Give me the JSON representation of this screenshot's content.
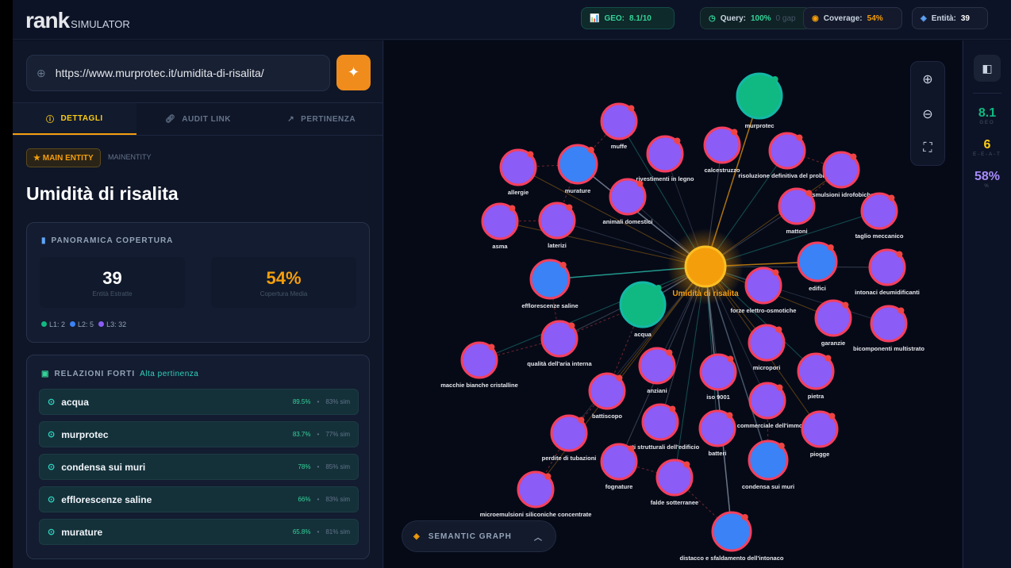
{
  "header": {
    "logo_main": "rank",
    "logo_sub": "SIMULATOR",
    "geo": {
      "label": "GEO:",
      "value": "8.1/10"
    },
    "query": {
      "label": "Query:",
      "value": "100%",
      "extra": "0 gap"
    },
    "coverage": {
      "label": "Coverage:",
      "value": "54%"
    },
    "entities": {
      "label": "Entità:",
      "value": "39"
    }
  },
  "url_input": {
    "value": "https://www.murprotec.it/umidita-di-risalita/"
  },
  "tabs": [
    {
      "label": "DETTAGLI",
      "icon": "info-icon",
      "active": true
    },
    {
      "label": "AUDIT LINK",
      "icon": "link-icon"
    },
    {
      "label": "PERTINENZA",
      "icon": "trending-up-icon"
    }
  ],
  "entity": {
    "badge": "★ MAIN ENTITY",
    "type": "MAINENTITY",
    "title": "Umidità di risalita"
  },
  "coverage_panel": {
    "title": "PANORAMICA COPERTURA",
    "entities_value": "39",
    "entities_label": "Entità Estratte",
    "coverage_value": "54%",
    "coverage_label": "Copertura Media",
    "levels": [
      {
        "label": "L1: 2",
        "color": "#10b981"
      },
      {
        "label": "L2: 5",
        "color": "#3b82f6"
      },
      {
        "label": "L3: 32",
        "color": "#8b5cf6"
      }
    ]
  },
  "relations": {
    "title": "RELAZIONI FORTI",
    "subtitle": "Alta pertinenza",
    "items": [
      {
        "name": "acqua",
        "score": "89.5%",
        "sim": "83% sim"
      },
      {
        "name": "murprotec",
        "score": "83.7%",
        "sim": "77% sim"
      },
      {
        "name": "condensa sui muri",
        "score": "78%",
        "sim": "85% sim"
      },
      {
        "name": "efflorescenze saline",
        "score": "66%",
        "sim": "83% sim"
      },
      {
        "name": "murature",
        "score": "65.8%",
        "sim": "81% sim"
      }
    ]
  },
  "graph": {
    "bottom_label": "SEMANTIC GRAPH",
    "colors": {
      "main": "#f59e0b",
      "L1": "#10b981",
      "L2": "#3b82f6",
      "L3": "#8b5cf6"
    },
    "nodes": [
      {
        "label": "Umidità di risalita",
        "level": "main"
      },
      {
        "label": "murprotec",
        "level": "L1"
      },
      {
        "label": "acqua",
        "level": "L1"
      },
      {
        "label": "murature",
        "level": "L2"
      },
      {
        "label": "efflorescenze saline",
        "level": "L2"
      },
      {
        "label": "edifici",
        "level": "L2"
      },
      {
        "label": "condensa sui muri",
        "level": "L2"
      },
      {
        "label": "distacco e sfaldamento dell'intonaco",
        "level": "L2"
      },
      {
        "label": "muffe",
        "level": "L3"
      },
      {
        "label": "allergie",
        "level": "L3"
      },
      {
        "label": "rivestimenti in legno",
        "level": "L3"
      },
      {
        "label": "calcestruzzo",
        "level": "L3"
      },
      {
        "label": "risoluzione definitiva del problema",
        "level": "L3"
      },
      {
        "label": "osmulsioni idrofobiche",
        "level": "L3"
      },
      {
        "label": "animali domestici",
        "level": "L3"
      },
      {
        "label": "mattoni",
        "level": "L3"
      },
      {
        "label": "taglio meccanico",
        "level": "L3"
      },
      {
        "label": "asma",
        "level": "L3"
      },
      {
        "label": "laterizi",
        "level": "L3"
      },
      {
        "label": "intonaci deumidificanti",
        "level": "L3"
      },
      {
        "label": "forze elettro-osmotiche",
        "level": "L3"
      },
      {
        "label": "garanzie",
        "level": "L3"
      },
      {
        "label": "bicomponenti multistrato",
        "level": "L3"
      },
      {
        "label": "qualità dell'aria interna",
        "level": "L3"
      },
      {
        "label": "macchie bianche cristalline",
        "level": "L3"
      },
      {
        "label": "micropori",
        "level": "L3"
      },
      {
        "label": "anziani",
        "level": "L3"
      },
      {
        "label": "iso 9001",
        "level": "L3"
      },
      {
        "label": "pietra",
        "level": "L3"
      },
      {
        "label": "battiscopo",
        "level": "L3"
      },
      {
        "label": "e commerciale dell'immo",
        "level": "L3"
      },
      {
        "label": "ponti strutturali dell'edificio",
        "level": "L3"
      },
      {
        "label": "batteri",
        "level": "L3"
      },
      {
        "label": "piogge",
        "level": "L3"
      },
      {
        "label": "perdite di tubazioni",
        "level": "L3"
      },
      {
        "label": "fognature",
        "level": "L3"
      },
      {
        "label": "falde sotterranee",
        "level": "L3"
      },
      {
        "label": "microemulsioni siliconiche concentrate",
        "level": "L3"
      }
    ]
  },
  "side_metrics": [
    {
      "value": "8.1",
      "label": "GEO",
      "color": "#10b981"
    },
    {
      "value": "6",
      "label": "E-E-A-T",
      "color": "#facc15"
    },
    {
      "value": "58%",
      "label": "%",
      "color": "#a78bfa"
    }
  ]
}
